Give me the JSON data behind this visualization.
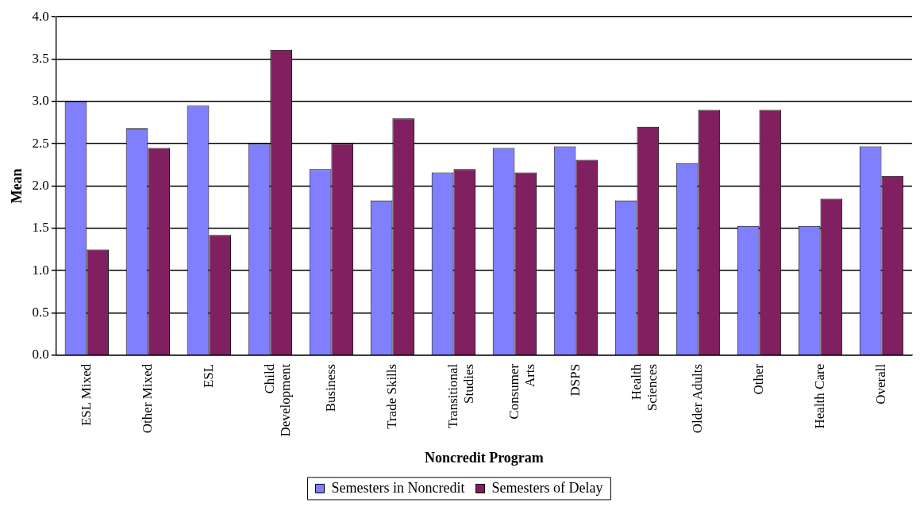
{
  "chart_data": {
    "type": "bar",
    "xlabel": "Noncredit Program",
    "ylabel": "Mean",
    "categories": [
      "ESL Mixed",
      "Other Mixed",
      "ESL",
      "Child Development",
      "Business",
      "Trade Skills",
      "Transitional Studies",
      "Consumer Arts",
      "DSPS",
      "Health Sciences",
      "Older Adults",
      "Other",
      "Health Care",
      "Overall"
    ],
    "series": [
      {
        "name": "Semesters in Noncredit",
        "color": "#8080ff",
        "values": [
          3.0,
          2.68,
          2.95,
          2.5,
          2.2,
          1.83,
          2.16,
          2.45,
          2.47,
          1.83,
          2.27,
          1.53,
          1.53,
          2.47
        ]
      },
      {
        "name": "Semesters of Delay",
        "color": "#802060",
        "values": [
          1.25,
          2.45,
          1.42,
          3.61,
          2.5,
          2.8,
          2.2,
          2.16,
          2.31,
          2.7,
          2.9,
          2.9,
          1.85,
          2.12
        ]
      }
    ],
    "ylim": [
      0,
      4
    ],
    "yticks": [
      {
        "value": 0,
        "label": "0.0"
      },
      {
        "value": 0.5,
        "label": "0.5"
      },
      {
        "value": 1,
        "label": "1.0"
      },
      {
        "value": 1.5,
        "label": "1.5"
      },
      {
        "value": 2,
        "label": "2.0"
      },
      {
        "value": 2.5,
        "label": "2.5"
      },
      {
        "value": 3,
        "label": "3.0"
      },
      {
        "value": 3.5,
        "label": "3.5"
      },
      {
        "value": 4,
        "label": "4.0"
      }
    ],
    "grid": "y",
    "legend": "bottom"
  }
}
